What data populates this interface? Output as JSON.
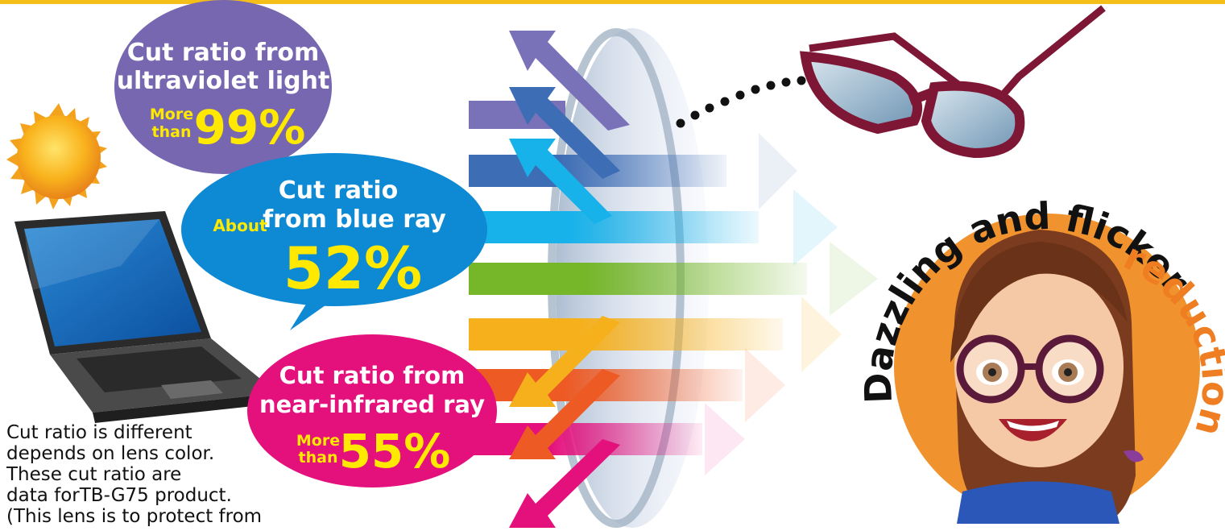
{
  "colors": {
    "top_border": "#f5bf1a",
    "uv_bubble": "#7667b0",
    "blue_bubble": "#0e89d4",
    "ir_bubble": "#e4117d",
    "highlight_yellow": "#ffe900",
    "circle_orange": "#f0922d",
    "glasses_frame": "#7e1736"
  },
  "uv": {
    "line1": "Cut ratio from",
    "line2": "ultraviolet light",
    "prefix1": "More",
    "prefix2": "than",
    "value": "99%"
  },
  "blue": {
    "line1": "Cut ratio",
    "line2": "from blue ray",
    "prefix": "About",
    "value": "52%"
  },
  "ir": {
    "line1": "Cut ratio from",
    "line2": "near-infrared ray",
    "prefix1": "More",
    "prefix2": "than",
    "value": "55%"
  },
  "headline": {
    "main": "Dazzling and flickering",
    "accent": "reduction"
  },
  "note": {
    "lines": [
      "Cut ratio is different",
      "depends on lens color.",
      "These cut ratio are",
      "data forTB-G75 product.",
      " (This lens is to protect from"
    ]
  },
  "icons": [
    "sun-icon",
    "laptop-icon",
    "glasses-icon",
    "lens-icon",
    "woman-icon"
  ]
}
